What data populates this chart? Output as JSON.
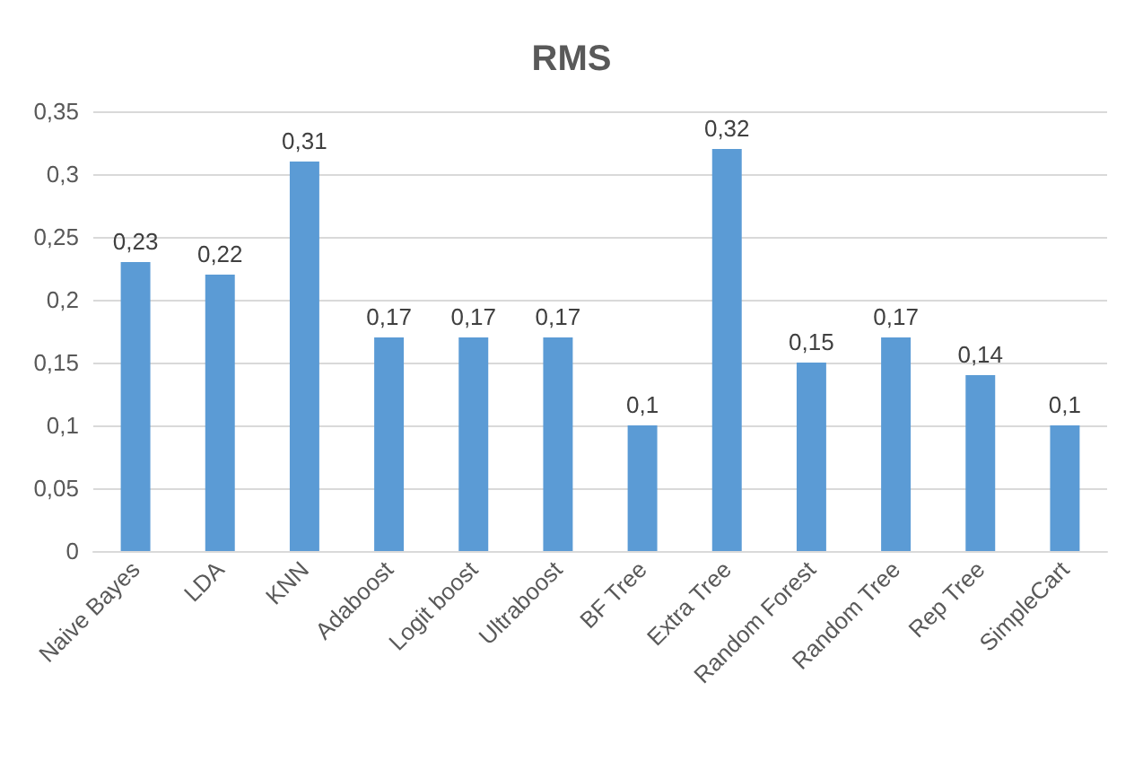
{
  "chart_data": {
    "type": "bar",
    "title": "RMS",
    "categories": [
      "Naive Bayes",
      "LDA",
      "KNN",
      "Adaboost",
      "Logit boost",
      "Ultraboost",
      "BF Tree",
      "Extra Tree",
      "Random Forest",
      "Random Tree",
      "Rep Tree",
      "SimpleCart"
    ],
    "values": [
      0.23,
      0.22,
      0.31,
      0.17,
      0.17,
      0.17,
      0.1,
      0.32,
      0.15,
      0.17,
      0.14,
      0.1
    ],
    "value_labels": [
      "0,23",
      "0,22",
      "0,31",
      "0,17",
      "0,17",
      "0,17",
      "0,1",
      "0,32",
      "0,15",
      "0,17",
      "0,14",
      "0,1"
    ],
    "color": "#5b9bd5",
    "ylim": [
      0,
      0.35
    ],
    "yticks": [
      {
        "value": 0,
        "label": "0"
      },
      {
        "value": 0.05,
        "label": "0,05"
      },
      {
        "value": 0.1,
        "label": "0,1"
      },
      {
        "value": 0.15,
        "label": "0,15"
      },
      {
        "value": 0.2,
        "label": "0,2"
      },
      {
        "value": 0.25,
        "label": "0,25"
      },
      {
        "value": 0.3,
        "label": "0,3"
      },
      {
        "value": 0.35,
        "label": "0,35"
      }
    ],
    "grid": true
  }
}
